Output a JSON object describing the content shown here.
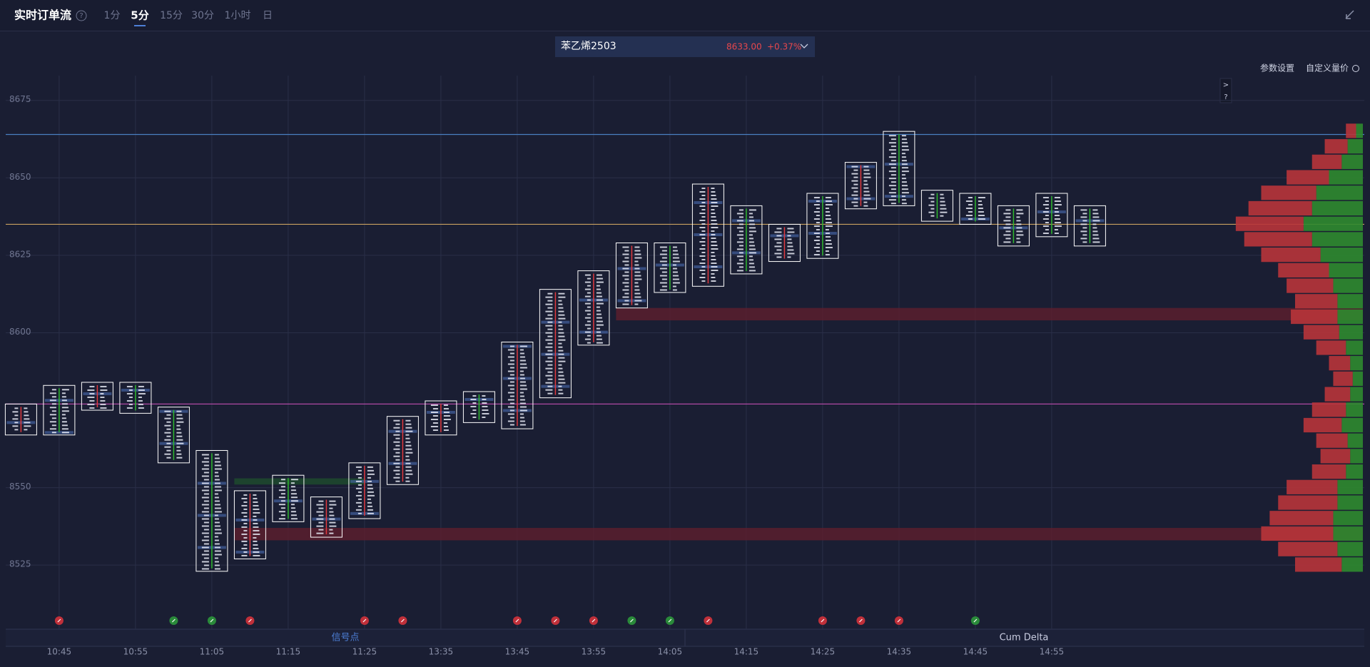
{
  "header": {
    "title": "实时订单流",
    "help": "?",
    "timeframes": [
      "1分",
      "5分",
      "15分",
      "30分",
      "1小时",
      "日"
    ],
    "active": 1
  },
  "instrument": {
    "name": "苯乙烯2503",
    "price": "8633.00",
    "change": "+0.37%"
  },
  "buttons": [
    "参数设置",
    "自定义量价"
  ],
  "side_buttons": [
    ">",
    "?"
  ],
  "panels": [
    "信号点",
    "Cum Delta"
  ],
  "chart_data": {
    "type": "footprint",
    "categories": [
      null,
      "10:45",
      null,
      "10:55",
      null,
      "11:05",
      null,
      "11:15",
      null,
      "11:25",
      null,
      "13:35",
      null,
      "13:45",
      null,
      "13:55",
      null,
      "14:05",
      null,
      "14:15",
      null,
      "14:25",
      null,
      "14:35",
      null,
      "14:45",
      null,
      "14:55",
      null
    ],
    "highs": [
      8577,
      8583,
      8584,
      8584,
      8576,
      8562,
      8549,
      8554,
      8547,
      8558,
      8573,
      8578,
      8581,
      8597,
      8614,
      8620,
      8629,
      8629,
      8648,
      8641,
      8635,
      8645,
      8655,
      8665,
      8646,
      8645,
      8641,
      8645,
      8641
    ],
    "lows": [
      8567,
      8567,
      8575,
      8574,
      8558,
      8523,
      8527,
      8539,
      8534,
      8540,
      8551,
      8567,
      8571,
      8569,
      8579,
      8596,
      8608,
      8613,
      8615,
      8619,
      8623,
      8624,
      8640,
      8641,
      8636,
      8635,
      8628,
      8631,
      8628
    ],
    "line_colors": [
      "#e0393e",
      "#2eb82e",
      "#e0393e",
      "#2eb82e",
      "#2eb82e",
      "#2eb82e",
      "#e0393e",
      "#2eb82e",
      "#e0393e",
      "#e0393e",
      "#e0393e",
      "#e0393e",
      "#2eb82e",
      "#e0393e",
      "#e0393e",
      "#e0393e",
      "#e0393e",
      "#2eb82e",
      "#e0393e",
      "#2eb82e",
      "#e0393e",
      "#2eb82e",
      "#e0393e",
      "#2eb82e",
      "#2eb82e",
      "#2eb82e",
      "#2eb82e",
      "#2eb82e",
      "#2eb82e"
    ],
    "ylim": [
      8505,
      8683
    ],
    "yticks": [
      8675,
      8650,
      8625,
      8600,
      8550,
      8525
    ],
    "grid": true,
    "levels": [
      {
        "value": 8664,
        "color": "#4a7fc1"
      },
      {
        "value": 8635,
        "color": "#c8a060"
      },
      {
        "value": 8577,
        "color": "#c04fb0"
      }
    ],
    "zones": [
      {
        "low": 8604,
        "high": 8608,
        "from": 16,
        "color": "#5a1f2e"
      },
      {
        "low": 8533,
        "high": 8537,
        "from": 6,
        "color": "#5a1f2e"
      },
      {
        "low": 8551,
        "high": 8553,
        "from": 6,
        "to": 9,
        "color": "#1f4a2e"
      }
    ],
    "signals": {
      "bars": [
        1,
        4,
        5,
        6,
        9,
        10,
        13,
        14,
        15,
        16,
        17,
        18,
        21,
        22,
        23,
        25
      ],
      "colors": [
        "#c0303a",
        "#2a8a3a",
        "#2a8a3a",
        "#c0303a",
        "#c0303a",
        "#c0303a",
        "#c0303a",
        "#c0303a",
        "#c0303a",
        "#2a8a3a",
        "#2a8a3a",
        "#c0303a",
        "#c0303a",
        "#c0303a",
        "#c0303a",
        "#2a8a3a"
      ]
    },
    "profile": {
      "levels": [
        8665,
        8660,
        8655,
        8650,
        8645,
        8640,
        8635,
        8630,
        8625,
        8620,
        8615,
        8610,
        8605,
        8600,
        8595,
        8590,
        8585,
        8580,
        8575,
        8570,
        8565,
        8560,
        8555,
        8550,
        8545,
        8540,
        8535,
        8530,
        8525
      ],
      "xlim": [
        0,
        160
      ],
      "series": [
        {
          "name": "buy",
          "color": "#2f8a2f",
          "values": [
            8,
            18,
            25,
            40,
            55,
            60,
            70,
            60,
            50,
            40,
            35,
            30,
            30,
            28,
            20,
            15,
            12,
            15,
            20,
            25,
            18,
            15,
            20,
            30,
            30,
            35,
            35,
            30,
            25
          ]
        },
        {
          "name": "sell",
          "color": "#b8343a",
          "values": [
            12,
            27,
            35,
            50,
            65,
            75,
            80,
            80,
            70,
            60,
            55,
            50,
            55,
            42,
            35,
            25,
            23,
            30,
            40,
            45,
            37,
            35,
            40,
            60,
            70,
            75,
            85,
            70,
            55
          ]
        }
      ]
    }
  }
}
